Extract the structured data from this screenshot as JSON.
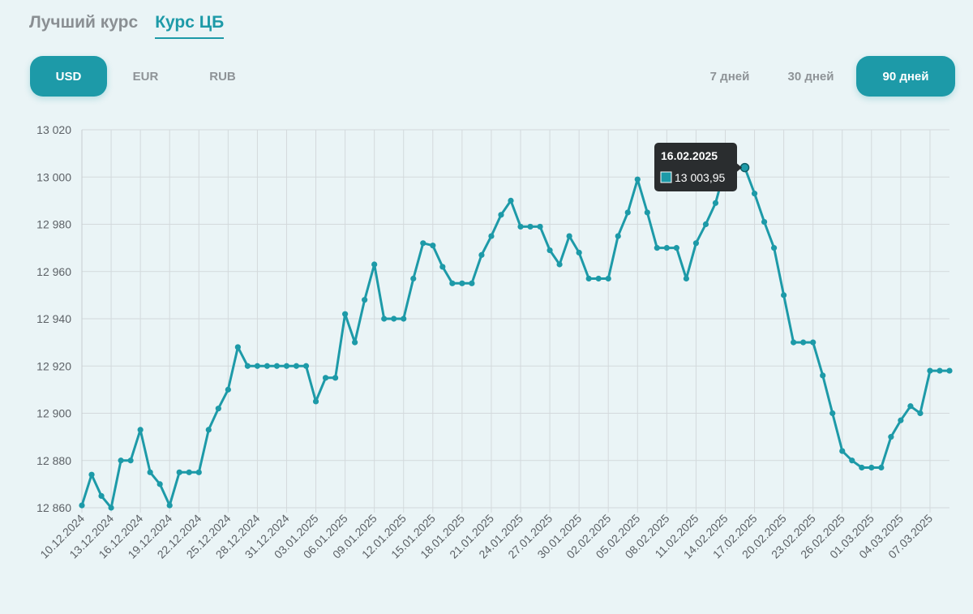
{
  "tabs": [
    {
      "label": "Лучший курс",
      "active": false
    },
    {
      "label": "Курс ЦБ",
      "active": true
    }
  ],
  "currencies": [
    {
      "label": "USD",
      "selected": true
    },
    {
      "label": "EUR",
      "selected": false
    },
    {
      "label": "RUB",
      "selected": false
    }
  ],
  "periods": [
    {
      "label": "7 дней",
      "selected": false
    },
    {
      "label": "30 дней",
      "selected": false
    },
    {
      "label": "90 дней",
      "selected": true
    }
  ],
  "colors": {
    "accent": "#1d9aa8",
    "tooltip_bg": "#2a2d2f",
    "background": "#eaf4f6"
  },
  "tooltip": {
    "date": "16.02.2025",
    "value": "13 003,95"
  },
  "chart_data": {
    "type": "line",
    "title": "",
    "xlabel": "",
    "ylabel": "",
    "ylim": [
      12860,
      13020
    ],
    "y_ticks": [
      "12 860",
      "12 880",
      "12 900",
      "12 920",
      "12 940",
      "12 960",
      "12 980",
      "13 000",
      "13 020"
    ],
    "x_tick_labels": [
      "10.12.2024",
      "13.12.2024",
      "16.12.2024",
      "19.12.2024",
      "22.12.2024",
      "25.12.2024",
      "28.12.2024",
      "31.12.2024",
      "03.01.2025",
      "06.01.2025",
      "09.01.2025",
      "12.01.2025",
      "15.01.2025",
      "18.01.2025",
      "21.01.2025",
      "24.01.2025",
      "27.01.2025",
      "30.01.2025",
      "02.02.2025",
      "05.02.2025",
      "08.02.2025",
      "11.02.2025",
      "14.02.2025",
      "17.02.2025",
      "20.02.2025",
      "23.02.2025",
      "26.02.2025",
      "01.03.2025",
      "04.03.2025",
      "07.03.2025"
    ],
    "x_start": "10.12.2024",
    "x_step_days": 1,
    "grid": true,
    "series": [
      {
        "name": "",
        "values": [
          12861,
          12874,
          12865,
          12860,
          12880,
          12880,
          12893,
          12875,
          12870,
          12861,
          12875,
          12875,
          12875,
          12893,
          12902,
          12910,
          12928,
          12920,
          12920,
          12920,
          12920,
          12920,
          12920,
          12920,
          12905,
          12915,
          12915,
          12942,
          12930,
          12948,
          12963,
          12940,
          12940,
          12940,
          12957,
          12972,
          12971,
          12962,
          12955,
          12955,
          12955,
          12967,
          12975,
          12984,
          12990,
          12979,
          12979,
          12979,
          12969,
          12963,
          12975,
          12968,
          12957,
          12957,
          12957,
          12975,
          12985,
          12999,
          12985,
          12970,
          12970,
          12970,
          12957,
          12972,
          12980,
          12989,
          13004,
          13004,
          13004,
          12993,
          12981,
          12970,
          12950,
          12930,
          12930,
          12930,
          12916,
          12900,
          12884,
          12880,
          12877,
          12877,
          12877,
          12890,
          12897,
          12903,
          12900,
          12918,
          12918,
          12918
        ]
      }
    ]
  }
}
